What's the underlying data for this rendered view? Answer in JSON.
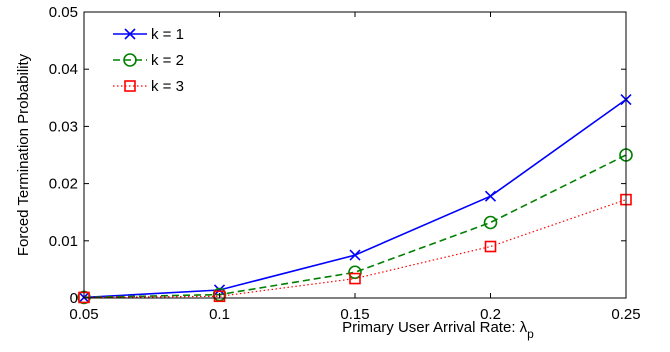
{
  "chart_data": {
    "type": "line",
    "x": [
      0.05,
      0.1,
      0.15,
      0.2,
      0.25
    ],
    "series": [
      {
        "name": "k = 1",
        "values": [
          0.0001,
          0.0014,
          0.0075,
          0.0178,
          0.0347
        ],
        "color": "#0000ff",
        "line": "solid",
        "marker": "x"
      },
      {
        "name": "k = 2",
        "values": [
          0.0001,
          0.0006,
          0.0045,
          0.0132,
          0.025
        ],
        "color": "#008000",
        "line": "dashed",
        "marker": "circle"
      },
      {
        "name": "k = 3",
        "values": [
          0.0001,
          0.0003,
          0.0034,
          0.009,
          0.0172
        ],
        "color": "#ff0000",
        "line": "dotted",
        "marker": "square"
      }
    ],
    "xlabel": "Primary User Arrival Rate: λ",
    "xlabel_subscript": "p",
    "ylabel": "Forced Termination Probability",
    "xlim": [
      0.05,
      0.25
    ],
    "ylim": [
      0,
      0.05
    ],
    "xticks": [
      "0.05",
      "0.1",
      "0.15",
      "0.2",
      "0.25"
    ],
    "yticks": [
      "0",
      "0.01",
      "0.02",
      "0.03",
      "0.04",
      "0.05"
    ],
    "grid": false,
    "legend_position": "top-left"
  }
}
